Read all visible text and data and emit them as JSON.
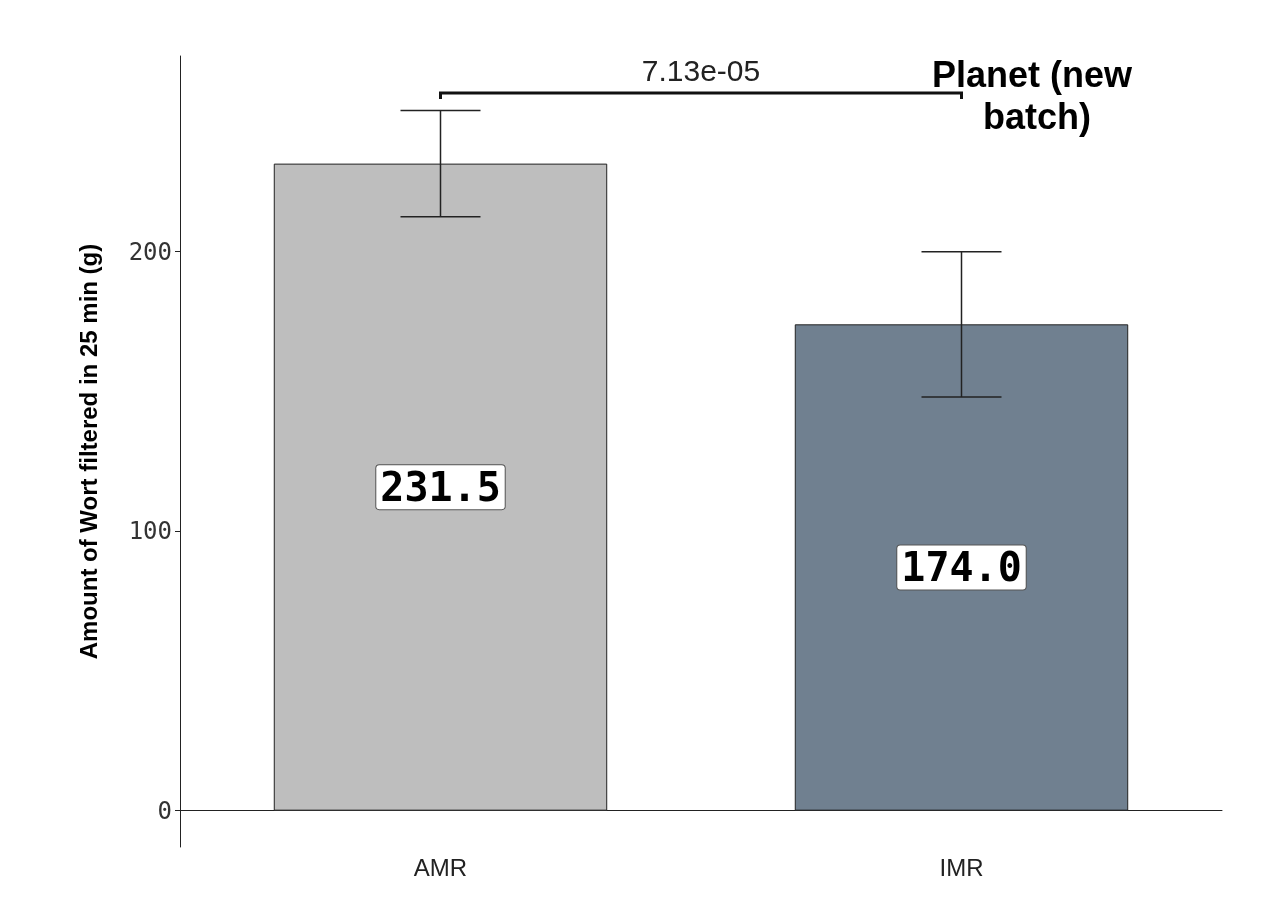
{
  "chart_data": {
    "type": "bar",
    "title": "Planet (new batch)",
    "ylabel": "Amount of Wort filtered in 25 min (g)",
    "categories": [
      "AMR",
      "IMR"
    ],
    "values": [
      231.5,
      174.0
    ],
    "colors": [
      "#bebebe",
      "#708090"
    ],
    "errors": [
      19,
      26
    ],
    "ylim": [
      -13,
      270
    ],
    "yticks": [
      0,
      100,
      200
    ],
    "value_labels": [
      "231.5",
      "174.0"
    ],
    "grid": false,
    "annotations": [
      "7.13e-05"
    ]
  }
}
